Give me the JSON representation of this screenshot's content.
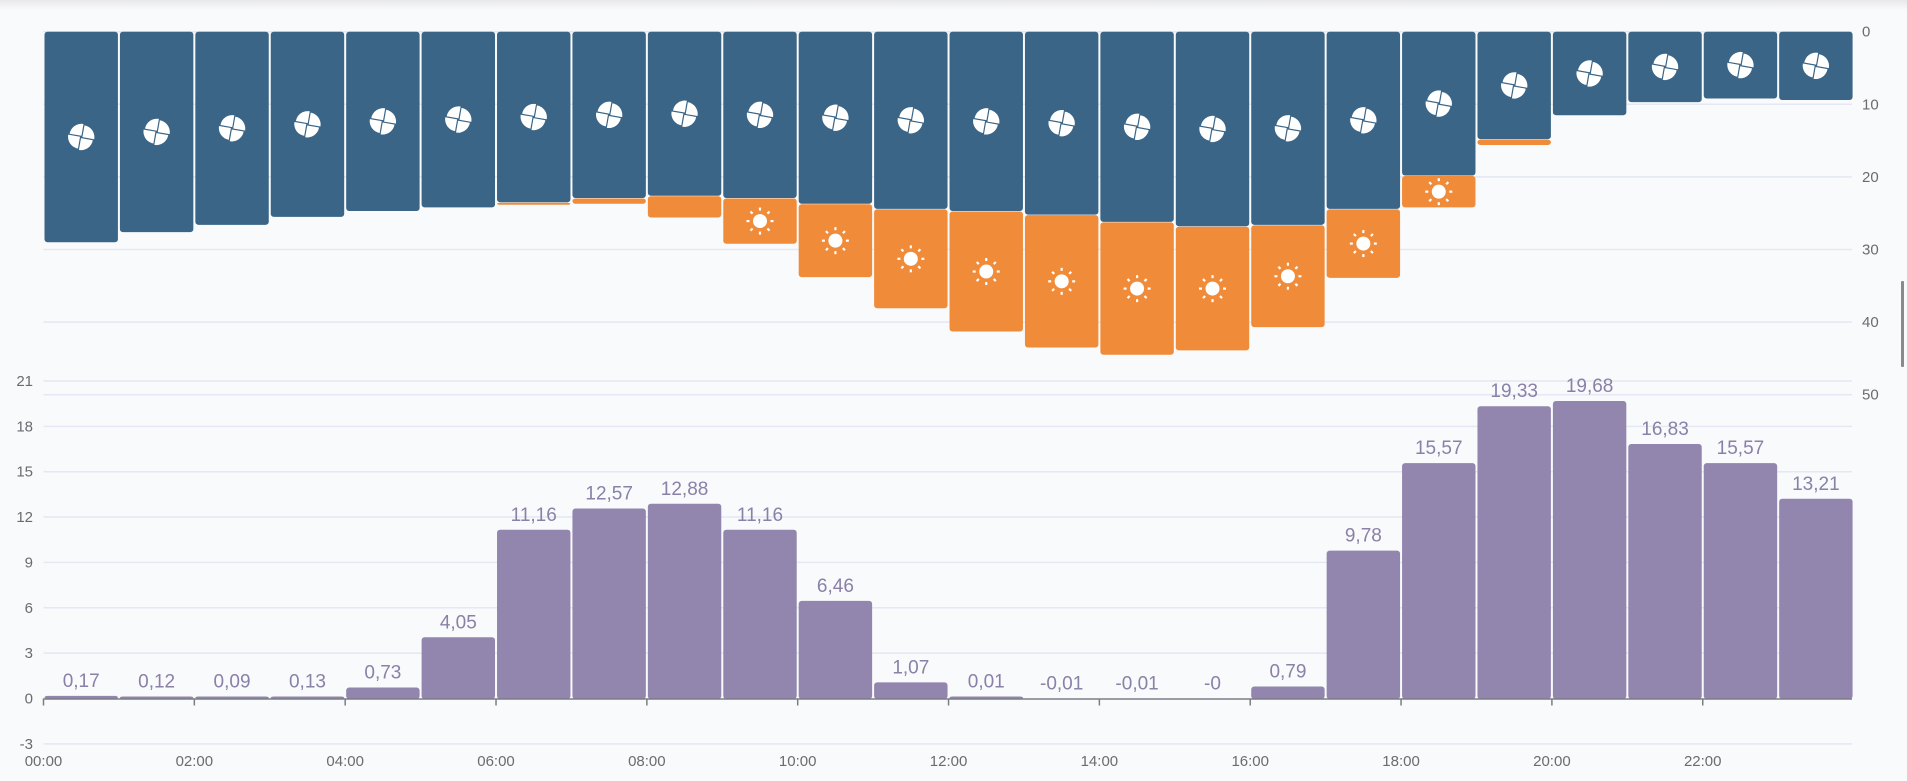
{
  "colors": {
    "fan": "#3a6587",
    "sun": "#f08b39",
    "energy": "#9285ae",
    "label": "#8a80a8",
    "axis_text": "#6b6b72",
    "grid": "#e3e8f3",
    "background": "#f9fafb"
  },
  "chart_data": [
    {
      "type": "bar",
      "title": "",
      "stacked": true,
      "inverted": true,
      "y_axis_side": "right",
      "ylim": [
        0,
        50
      ],
      "yticks": [
        "0",
        "10",
        "20",
        "30",
        "40",
        "50"
      ],
      "categories": [
        "00:00",
        "01:00",
        "02:00",
        "03:00",
        "04:00",
        "05:00",
        "06:00",
        "07:00",
        "08:00",
        "09:00",
        "10:00",
        "11:00",
        "12:00",
        "13:00",
        "14:00",
        "15:00",
        "16:00",
        "17:00",
        "18:00",
        "19:00",
        "20:00",
        "21:00",
        "22:00",
        "23:00"
      ],
      "series": [
        {
          "name": "fan",
          "icon": "fan-icon",
          "values": [
            29.0,
            27.6,
            26.6,
            25.5,
            24.7,
            24.2,
            23.5,
            22.9,
            22.6,
            22.9,
            23.7,
            24.4,
            24.7,
            25.2,
            26.2,
            26.8,
            26.6,
            24.4,
            19.8,
            14.8,
            11.5,
            9.7,
            9.2,
            9.4
          ]
        },
        {
          "name": "sun",
          "icon": "sun-icon",
          "values": [
            0,
            0,
            0,
            0,
            0,
            0,
            0.1,
            0.8,
            3.0,
            6.3,
            10.1,
            13.7,
            16.6,
            18.3,
            18.3,
            17.1,
            14.1,
            9.5,
            4.4,
            0.8,
            0,
            0,
            0,
            0
          ]
        }
      ]
    },
    {
      "type": "bar",
      "title": "",
      "y_axis_side": "left",
      "ylim": [
        -3,
        21
      ],
      "yticks": [
        "-3",
        "0",
        "3",
        "6",
        "9",
        "12",
        "15",
        "18",
        "21"
      ],
      "xticks": [
        "00:00",
        "02:00",
        "04:00",
        "06:00",
        "08:00",
        "10:00",
        "12:00",
        "14:00",
        "16:00",
        "18:00",
        "20:00",
        "22:00"
      ],
      "categories": [
        "00:00",
        "01:00",
        "02:00",
        "03:00",
        "04:00",
        "05:00",
        "06:00",
        "07:00",
        "08:00",
        "09:00",
        "10:00",
        "11:00",
        "12:00",
        "13:00",
        "14:00",
        "15:00",
        "16:00",
        "17:00",
        "18:00",
        "19:00",
        "20:00",
        "21:00",
        "22:00",
        "23:00"
      ],
      "values": [
        0.17,
        0.12,
        0.09,
        0.13,
        0.73,
        4.05,
        11.16,
        12.57,
        12.88,
        11.16,
        6.46,
        1.07,
        0.01,
        -0.01,
        -0.01,
        0,
        0.79,
        9.78,
        15.57,
        19.33,
        19.68,
        16.83,
        15.57,
        13.21
      ],
      "data_labels": [
        "0,17",
        "0,12",
        "0,09",
        "0,13",
        "0,73",
        "4,05",
        "11,16",
        "12,57",
        "12,88",
        "11,16",
        "6,46",
        "1,07",
        "0,01",
        "-0,01",
        "-0,01",
        "-0",
        "0,79",
        "9,78",
        "15,57",
        "19,33",
        "19,68",
        "16,83",
        "15,57",
        "13,21"
      ]
    }
  ]
}
